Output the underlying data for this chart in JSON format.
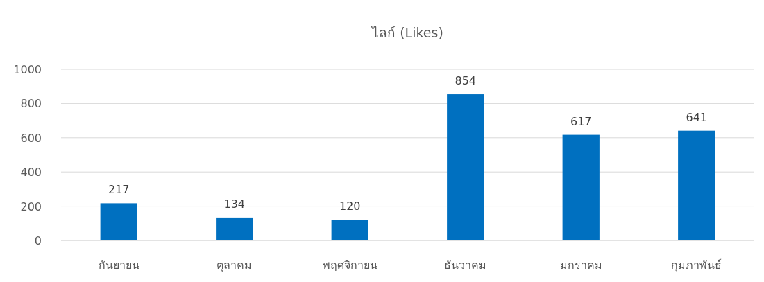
{
  "chart_data": {
    "type": "bar",
    "title": "ไลก์ (Likes)",
    "categories": [
      "กันยายน",
      "ตุลาคม",
      "พฤศจิกายน",
      "ธันวาคม",
      "มกราคม",
      "กุมภาพันธ์"
    ],
    "values": [
      217,
      134,
      120,
      854,
      617,
      641
    ],
    "color": "#0070c0",
    "ylim": [
      0,
      1000
    ],
    "yticks": [
      0,
      200,
      400,
      600,
      800,
      1000
    ],
    "grid": "y",
    "data_labels": true
  }
}
